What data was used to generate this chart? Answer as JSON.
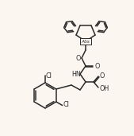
{
  "bg_color": "#fbf7f0",
  "line_color": "#2a2a2a",
  "line_width": 1.1,
  "text_color": "#2a2a2a",
  "font_size": 5.8,
  "label_Abs": "Abs",
  "label_Cl1": "Cl",
  "label_Cl2": "Cl",
  "label_NH": "HN",
  "label_O1": "O",
  "label_O2": "O",
  "label_O3": "O",
  "label_OH": "OH"
}
